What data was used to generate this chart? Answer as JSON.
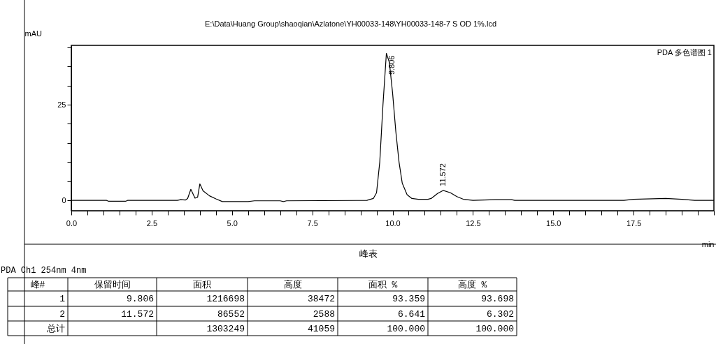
{
  "chart_data": {
    "type": "line",
    "title": "E:\\Data\\Huang Group\\shaoqian\\Azlatone\\YH00033-148\\YH00033-148-7 S OD 1%.lcd",
    "xlabel": "min",
    "ylabel": "mAU",
    "x": [
      0,
      1.1,
      1.15,
      1.7,
      1.75,
      3.3,
      3.4,
      3.55,
      3.62,
      3.72,
      3.85,
      3.93,
      4.0,
      4.1,
      4.3,
      4.5,
      4.7,
      5.5,
      5.7,
      6.5,
      6.6,
      6.7,
      9.2,
      9.4,
      9.5,
      9.6,
      9.7,
      9.806,
      9.9,
      10.0,
      10.1,
      10.2,
      10.3,
      10.45,
      10.6,
      10.8,
      11.1,
      11.2,
      11.4,
      11.572,
      11.8,
      12.0,
      12.2,
      12.5,
      13.2,
      13.7,
      13.8,
      17.2,
      17.5,
      18.5,
      19.0,
      19.4,
      20
    ],
    "series": [
      {
        "color": "#000000",
        "values": [
          0,
          0,
          -0.2,
          -0.2,
          0,
          0,
          0.2,
          0.1,
          0.5,
          2.9,
          0.6,
          0.8,
          4.3,
          2.5,
          1.2,
          0.4,
          -0.3,
          -0.3,
          -0.1,
          -0.1,
          -0.3,
          -0.1,
          0,
          0.5,
          2,
          10,
          25,
          38.4,
          36,
          28,
          18,
          10,
          4.5,
          1.5,
          0.5,
          0.3,
          0.3,
          0.5,
          1.8,
          2.6,
          2.0,
          1.0,
          0.3,
          0,
          0.2,
          0.2,
          0,
          0,
          0.3,
          0.5,
          0.3,
          0,
          0
        ]
      }
    ],
    "xlim": [
      0,
      20
    ],
    "ylim": [
      -2.7,
      40.5
    ],
    "xticks": [
      {
        "value": 0,
        "label": "0.0"
      },
      {
        "value": 0.5,
        "label": null
      },
      {
        "value": 1,
        "label": null
      },
      {
        "value": 1.5,
        "label": null
      },
      {
        "value": 2,
        "label": null
      },
      {
        "value": 2.5,
        "label": "2.5"
      },
      {
        "value": 3,
        "label": null
      },
      {
        "value": 3.5,
        "label": null
      },
      {
        "value": 4,
        "label": null
      },
      {
        "value": 4.5,
        "label": null
      },
      {
        "value": 5,
        "label": "5.0"
      },
      {
        "value": 5.5,
        "label": null
      },
      {
        "value": 6,
        "label": null
      },
      {
        "value": 6.5,
        "label": null
      },
      {
        "value": 7,
        "label": null
      },
      {
        "value": 7.5,
        "label": "7.5"
      },
      {
        "value": 8,
        "label": null
      },
      {
        "value": 8.5,
        "label": null
      },
      {
        "value": 9,
        "label": null
      },
      {
        "value": 9.5,
        "label": null
      },
      {
        "value": 10,
        "label": "10.0"
      },
      {
        "value": 10.5,
        "label": null
      },
      {
        "value": 11,
        "label": null
      },
      {
        "value": 11.5,
        "label": null
      },
      {
        "value": 12,
        "label": null
      },
      {
        "value": 12.5,
        "label": "12.5"
      },
      {
        "value": 13,
        "label": null
      },
      {
        "value": 13.5,
        "label": null
      },
      {
        "value": 14,
        "label": null
      },
      {
        "value": 14.5,
        "label": null
      },
      {
        "value": 15,
        "label": "15.0"
      },
      {
        "value": 15.5,
        "label": null
      },
      {
        "value": 16,
        "label": null
      },
      {
        "value": 16.5,
        "label": null
      },
      {
        "value": 17,
        "label": null
      },
      {
        "value": 17.5,
        "label": "17.5"
      },
      {
        "value": 18,
        "label": null
      },
      {
        "value": 18.5,
        "label": null
      },
      {
        "value": 19,
        "label": null
      },
      {
        "value": 19.5,
        "label": null
      },
      {
        "value": 20,
        "label": null
      }
    ],
    "yticks": [
      0,
      {
        "value": 5,
        "label": null
      },
      {
        "value": 10,
        "label": null
      },
      {
        "value": 15,
        "label": null
      },
      {
        "value": 20,
        "label": null
      },
      25,
      {
        "value": 30,
        "label": null
      },
      {
        "value": 35,
        "label": null
      },
      {
        "value": 40,
        "label": null
      }
    ],
    "grid": false,
    "marker": "none",
    "line_style": "solid",
    "annotations": [
      {
        "text": "9.806",
        "x": 9.806,
        "y": 38.4
      },
      {
        "text": "11.572",
        "x": 11.572,
        "y": 2.6
      },
      "PDA 多色谱图 1",
      "峰表",
      "PDA Ch1 254nm 4nm",
      "峰#",
      "保留时间",
      "面积",
      "高度",
      "面积 %",
      "高度 %",
      "1",
      "9.806",
      "1216698",
      "38472",
      "93.359",
      "93.698",
      "2",
      "11.572",
      "86552",
      "2588",
      "6.641",
      "6.302",
      "总计",
      "1303249",
      "41059",
      "100.000",
      "100.000"
    ]
  }
}
